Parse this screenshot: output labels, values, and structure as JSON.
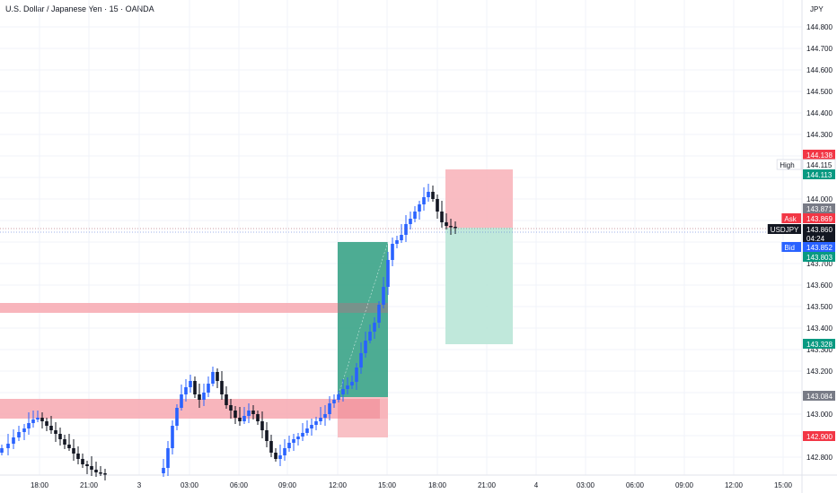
{
  "header": {
    "title": "U.S. Dollar / Japanese Yen · 15 · OANDA",
    "currency": "JPY"
  },
  "colors": {
    "up": "#2962ff",
    "down": "#131722",
    "zone_red": "#f7a8b0",
    "tp_dark": "#2e9e80",
    "tp_light": "#b9e5d7",
    "sl_red": "#f8b5bb",
    "price_line": "#b0b0b0",
    "label_red": "#f23645",
    "label_green": "#089981",
    "label_gray": "#787b86",
    "label_blue": "#2962ff",
    "label_black": "#131722"
  },
  "price_scale": {
    "ticks": [
      "144.800",
      "144.700",
      "144.600",
      "144.500",
      "144.400",
      "144.300",
      "144.000",
      "143.700",
      "143.600",
      "143.500",
      "143.400",
      "143.300",
      "143.200",
      "143.000",
      "142.800"
    ]
  },
  "time_axis": {
    "ticks": [
      "18:00",
      "21:00",
      "3",
      "03:00",
      "06:00",
      "09:00",
      "12:00",
      "15:00",
      "18:00",
      "21:00",
      "4",
      "03:00",
      "06:00",
      "09:00",
      "12:00",
      "15:00"
    ]
  },
  "price_labels": [
    {
      "key": "sl_top",
      "text": "144.138",
      "kind": "red"
    },
    {
      "key": "high",
      "prefix": "High",
      "text": "144.115",
      "kind": "plain"
    },
    {
      "key": "tp_high",
      "text": "144.113",
      "kind": "green"
    },
    {
      "key": "gray1",
      "text": "143.871",
      "kind": "gray"
    },
    {
      "key": "ask",
      "prefix": "Ask",
      "text": "143.869",
      "kind": "red"
    },
    {
      "key": "last",
      "prefix": "USDJPY",
      "text": "143.860",
      "sub": "04:24",
      "kind": "black"
    },
    {
      "key": "bid",
      "prefix": "Bid",
      "text": "143.852",
      "kind": "blue"
    },
    {
      "key": "green2",
      "text": "143.803",
      "kind": "green"
    },
    {
      "key": "tp_low",
      "text": "143.328",
      "kind": "green"
    },
    {
      "key": "gray2",
      "text": "143.084",
      "kind": "gray"
    },
    {
      "key": "red2",
      "text": "142.900",
      "kind": "red"
    }
  ]
}
